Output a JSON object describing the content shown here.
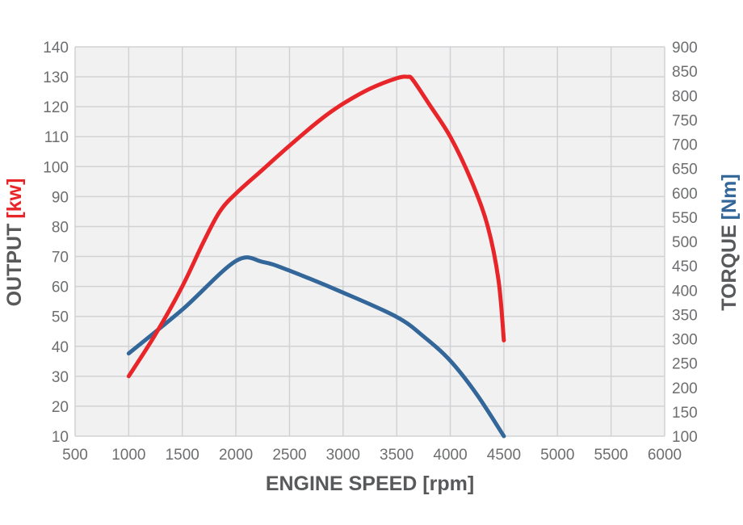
{
  "chart_data": {
    "type": "line",
    "xlabel": "ENGINE SPEED [rpm]",
    "ylabel_left": {
      "main": "OUTPUT",
      "unit": "[kw]"
    },
    "ylabel_right": {
      "main": "TORQUE",
      "unit": "[Nm]"
    },
    "xlim": [
      500,
      6000
    ],
    "ylim_left": [
      10,
      140
    ],
    "ylim_right": [
      100,
      900
    ],
    "x_ticks": [
      "500",
      "1000",
      "1500",
      "2000",
      "2500",
      "3000",
      "3500",
      "4000",
      "4500",
      "5000",
      "5500",
      "6000"
    ],
    "y_left_ticks": [
      "10",
      "20",
      "30",
      "40",
      "50",
      "60",
      "70",
      "80",
      "90",
      "100",
      "110",
      "120",
      "130",
      "140"
    ],
    "y_right_ticks": [
      "100",
      "150",
      "200",
      "250",
      "300",
      "350",
      "400",
      "450",
      "500",
      "550",
      "600",
      "650",
      "700",
      "750",
      "800",
      "850",
      "900"
    ],
    "grid": true,
    "series": [
      {
        "key": "output",
        "axis": "left",
        "color": "#e8262a",
        "x": [
          1000,
          1250,
          1500,
          1700,
          1850,
          2000,
          2250,
          2500,
          2800,
          3000,
          3250,
          3500,
          3600,
          3650,
          3800,
          4000,
          4200,
          4350,
          4450,
          4500
        ],
        "y": [
          30,
          44,
          60,
          75,
          85,
          91,
          99,
          107,
          116,
          121,
          126,
          129.5,
          130,
          129,
          121,
          110,
          95,
          80,
          62,
          42
        ]
      },
      {
        "key": "torque",
        "axis": "right",
        "color": "#336699",
        "x": [
          1000,
          1500,
          2000,
          2250,
          2500,
          3000,
          3500,
          3750,
          4000,
          4250,
          4500
        ],
        "y": [
          270,
          360,
          460,
          458,
          440,
          395,
          345,
          305,
          255,
          185,
          100
        ]
      }
    ],
    "colors": {
      "plot_bg": "#f1f1f2",
      "grid": "#d1d2d4",
      "tick_text": "#6d6e70",
      "xlabel": "#58595b",
      "output": "#e8262a",
      "torque": "#336699"
    }
  }
}
